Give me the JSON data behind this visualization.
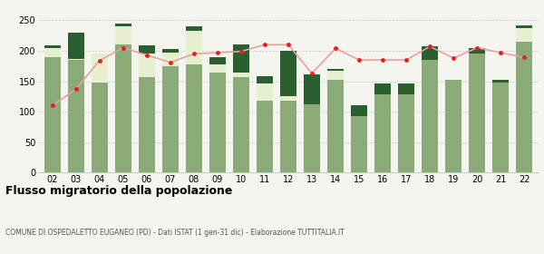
{
  "years": [
    "02",
    "03",
    "04",
    "05",
    "06",
    "07",
    "08",
    "09",
    "10",
    "11",
    "12",
    "13",
    "14",
    "15",
    "16",
    "17",
    "18",
    "19",
    "20",
    "21",
    "22"
  ],
  "iscritti_comuni": [
    190,
    185,
    148,
    210,
    157,
    175,
    178,
    165,
    157,
    118,
    118,
    112,
    152,
    93,
    128,
    128,
    185,
    152,
    195,
    148,
    215
  ],
  "iscritti_estero": [
    15,
    2,
    47,
    30,
    38,
    22,
    55,
    12,
    8,
    28,
    7,
    0,
    15,
    0,
    0,
    0,
    0,
    0,
    0,
    0,
    22
  ],
  "iscritti_altri": [
    4,
    43,
    0,
    5,
    14,
    6,
    7,
    13,
    45,
    12,
    75,
    50,
    3,
    18,
    18,
    18,
    22,
    0,
    10,
    5,
    4
  ],
  "cancellati": [
    110,
    137,
    184,
    205,
    193,
    181,
    195,
    197,
    199,
    210,
    210,
    163,
    204,
    185,
    185,
    185,
    207,
    188,
    205,
    197,
    189
  ],
  "color_comuni": "#8aaa78",
  "color_estero": "#e8efd0",
  "color_altri": "#2a6030",
  "color_cancellati": "#dd2222",
  "ylabel_max": 250,
  "bg_color": "#f5f5f0",
  "title": "Flusso migratorio della popolazione",
  "subtitle": "COMUNE DI OSPEDALETTO EUGANEO (PD) - Dati ISTAT (1 gen-31 dic) - Elaborazione TUTTITALIA.IT"
}
